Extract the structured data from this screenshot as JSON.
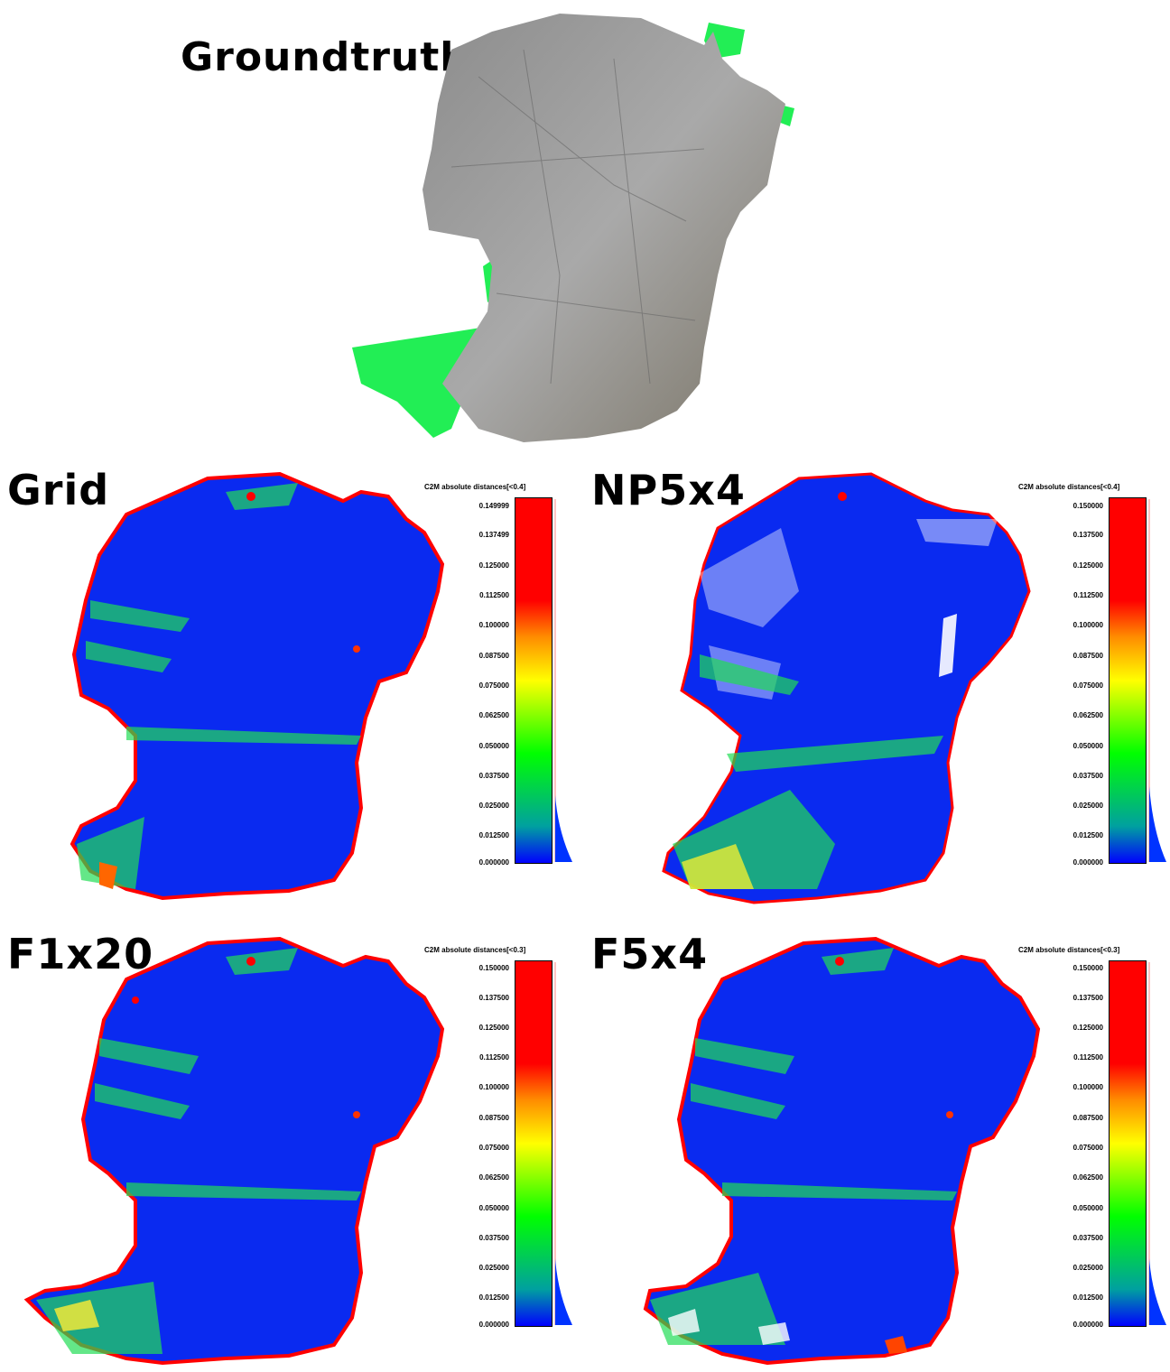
{
  "groundtruth": {
    "title": "Groundtruth"
  },
  "panels": [
    {
      "title": "Grid",
      "scale_title": "C2M absolute distances[<0.4]",
      "ticks": [
        "0.149999",
        "0.137499",
        "0.125000",
        "0.112500",
        "0.100000",
        "0.087500",
        "0.075000",
        "0.062500",
        "0.050000",
        "0.037500",
        "0.025000",
        "0.012500",
        "0.000000"
      ]
    },
    {
      "title": "NP5x4",
      "scale_title": "C2M absolute distances[<0.4]",
      "ticks": [
        "0.150000",
        "0.137500",
        "0.125000",
        "0.112500",
        "0.100000",
        "0.087500",
        "0.075000",
        "0.062500",
        "0.050000",
        "0.037500",
        "0.025000",
        "0.012500",
        "0.000000"
      ]
    },
    {
      "title": "F1x20",
      "scale_title": "C2M absolute distances[<0.3]",
      "ticks": [
        "0.150000",
        "0.137500",
        "0.125000",
        "0.112500",
        "0.100000",
        "0.087500",
        "0.075000",
        "0.062500",
        "0.050000",
        "0.037500",
        "0.025000",
        "0.012500",
        "0.000000"
      ]
    },
    {
      "title": "F5x4",
      "scale_title": "C2M absolute distances[<0.3]",
      "ticks": [
        "0.150000",
        "0.137500",
        "0.125000",
        "0.112500",
        "0.100000",
        "0.087500",
        "0.075000",
        "0.062500",
        "0.050000",
        "0.037500",
        "0.025000",
        "0.012500",
        "0.000000"
      ]
    }
  ],
  "colors": {
    "low": "#0000ff",
    "mid": "#00ff00",
    "high": "#ff0000",
    "gap_fill": "#22ee55",
    "rock": "#9a9a9a"
  }
}
